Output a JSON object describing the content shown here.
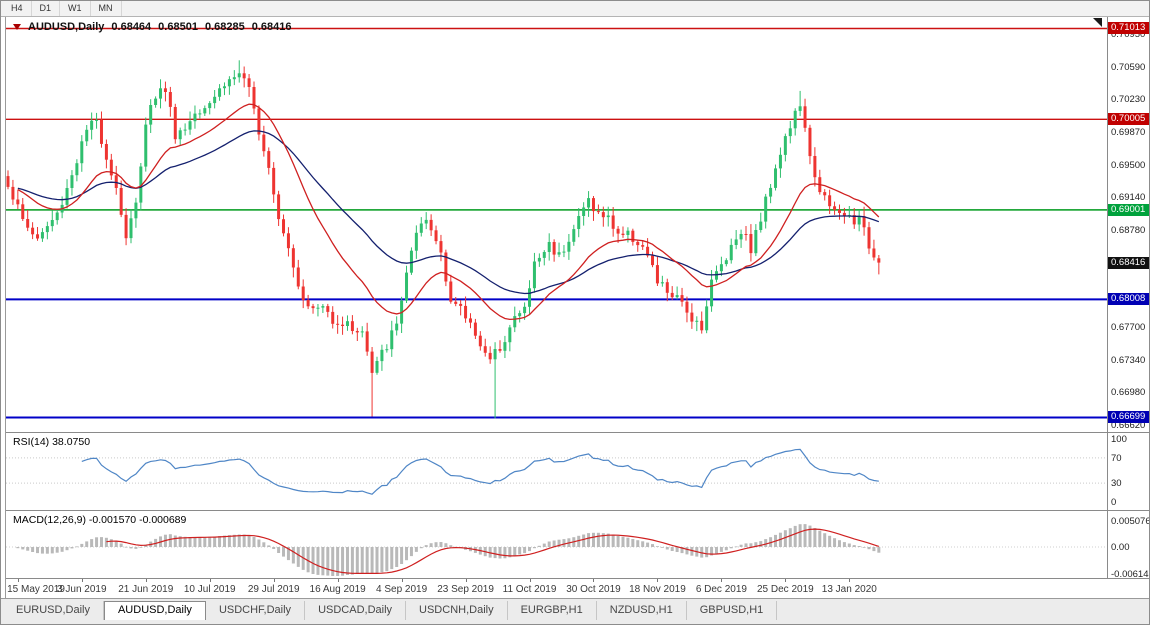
{
  "colors": {
    "up": "#2fbf6e",
    "down": "#ee3431",
    "ma_fast": "#cf2020",
    "ma_slow": "#14206e",
    "line_red": "#cc1111",
    "line_green": "#23a83c",
    "line_blue": "#0000c8",
    "rsi_line": "#4f86c6",
    "macd_hist": "#b9b9b9",
    "macd_signal": "#cf2020",
    "badge_red": "#c00000",
    "badge_green": "#00a23c",
    "badge_blue": "#0000b4",
    "badge_black": "#111111"
  },
  "icons": {
    "symbol_marker": "triangle-down-red",
    "chart_shift": "black-corner-triangle"
  },
  "toolbar": {
    "timeframes": [
      "H4",
      "D1",
      "W1",
      "MN"
    ]
  },
  "chart_header": {
    "symbol": "AUDUSD,Daily",
    "open": "0.68464",
    "high": "0.68501",
    "low": "0.68285",
    "close": "0.68416"
  },
  "price_axis": {
    "labels": [
      {
        "text": "0.70950",
        "price": 0.7095
      },
      {
        "text": "0.70590",
        "price": 0.7059
      },
      {
        "text": "0.70230",
        "price": 0.7023
      },
      {
        "text": "0.69870",
        "price": 0.6987
      },
      {
        "text": "0.69500",
        "price": 0.695
      },
      {
        "text": "0.69140",
        "price": 0.6914
      },
      {
        "text": "0.68780",
        "price": 0.6878
      },
      {
        "text": "0.67700",
        "price": 0.677
      },
      {
        "text": "0.67340",
        "price": 0.6734
      },
      {
        "text": "0.66980",
        "price": 0.6698
      },
      {
        "text": "0.66620",
        "price": 0.6662
      }
    ],
    "badges": [
      {
        "text": "0.71013",
        "price": 0.71013,
        "color_key": "badge_red"
      },
      {
        "text": "0.70005",
        "price": 0.70005,
        "color_key": "badge_red"
      },
      {
        "text": "0.69001",
        "price": 0.69001,
        "color_key": "badge_green"
      },
      {
        "text": "0.68416",
        "price": 0.68416,
        "color_key": "badge_black"
      },
      {
        "text": "0.68008",
        "price": 0.68008,
        "color_key": "badge_blue"
      },
      {
        "text": "0.66699",
        "price": 0.66699,
        "color_key": "badge_blue"
      }
    ]
  },
  "hlines": [
    {
      "price": 0.71013,
      "color_key": "line_red",
      "width": 1.4
    },
    {
      "price": 0.70005,
      "color_key": "line_red",
      "width": 1.4
    },
    {
      "price": 0.69001,
      "color_key": "line_green",
      "width": 1.8
    },
    {
      "price": 0.68008,
      "color_key": "line_blue",
      "width": 2
    },
    {
      "price": 0.66699,
      "color_key": "line_blue",
      "width": 2
    }
  ],
  "chart_data": {
    "type": "candlestick",
    "symbol": "AUDUSD",
    "timeframe": "Daily",
    "price_range": {
      "min": 0.6656,
      "max": 0.7114
    },
    "num_candles": 178,
    "spacing": 4.92,
    "noise": 0.0014,
    "waypoints": [
      [
        0,
        0.693
      ],
      [
        3,
        0.6888
      ],
      [
        6,
        0.6868
      ],
      [
        10,
        0.6895
      ],
      [
        13,
        0.694
      ],
      [
        16,
        0.6988
      ],
      [
        18,
        0.6998
      ],
      [
        20,
        0.696
      ],
      [
        22,
        0.6925
      ],
      [
        24,
        0.687
      ],
      [
        26,
        0.6905
      ],
      [
        28,
        0.7
      ],
      [
        30,
        0.7028
      ],
      [
        32,
        0.7035
      ],
      [
        34,
        0.6985
      ],
      [
        36,
        0.699
      ],
      [
        38,
        0.701
      ],
      [
        41,
        0.7022
      ],
      [
        44,
        0.704
      ],
      [
        47,
        0.7052
      ],
      [
        49,
        0.703
      ],
      [
        51,
        0.699
      ],
      [
        53,
        0.695
      ],
      [
        55,
        0.6895
      ],
      [
        57,
        0.686
      ],
      [
        59,
        0.682
      ],
      [
        61,
        0.679
      ],
      [
        64,
        0.6792
      ],
      [
        66,
        0.678
      ],
      [
        69,
        0.6772
      ],
      [
        72,
        0.6765
      ],
      [
        74,
        0.6718
      ],
      [
        76,
        0.674
      ],
      [
        79,
        0.6772
      ],
      [
        81,
        0.6832
      ],
      [
        83,
        0.687
      ],
      [
        85,
        0.6887
      ],
      [
        88,
        0.6855
      ],
      [
        90,
        0.68
      ],
      [
        93,
        0.6782
      ],
      [
        95,
        0.6765
      ],
      [
        98,
        0.673
      ],
      [
        100,
        0.675
      ],
      [
        103,
        0.678
      ],
      [
        105,
        0.679
      ],
      [
        107,
        0.684
      ],
      [
        110,
        0.6862
      ],
      [
        112,
        0.685
      ],
      [
        115,
        0.688
      ],
      [
        118,
        0.6912
      ],
      [
        120,
        0.6895
      ],
      [
        122,
        0.689
      ],
      [
        124,
        0.6875
      ],
      [
        127,
        0.687
      ],
      [
        129,
        0.686
      ],
      [
        132,
        0.682
      ],
      [
        134,
        0.681
      ],
      [
        136,
        0.68
      ],
      [
        139,
        0.6782
      ],
      [
        141,
        0.6772
      ],
      [
        143,
        0.682
      ],
      [
        145,
        0.684
      ],
      [
        147,
        0.686
      ],
      [
        149,
        0.688
      ],
      [
        151,
        0.6858
      ],
      [
        153,
        0.689
      ],
      [
        156,
        0.695
      ],
      [
        158,
        0.698
      ],
      [
        161,
        0.7018
      ],
      [
        163,
        0.6955
      ],
      [
        165,
        0.6925
      ],
      [
        167,
        0.69
      ],
      [
        169,
        0.6895
      ],
      [
        171,
        0.6892
      ],
      [
        173,
        0.6888
      ],
      [
        175,
        0.6862
      ],
      [
        176,
        0.685
      ],
      [
        177,
        0.68416
      ]
    ],
    "forced_extremes": [
      {
        "i": 47,
        "high": 0.7066
      },
      {
        "i": 74,
        "low": 0.6671
      },
      {
        "i": 99,
        "low": 0.6669
      },
      {
        "i": 161,
        "high": 0.7032
      }
    ],
    "last_candle": {
      "open": 0.68464,
      "high": 0.68501,
      "low": 0.68285,
      "close": 0.68416
    },
    "ma_fast_period": 20,
    "ma_slow_period": 45,
    "rsi_period": 14,
    "macd": {
      "fast": 12,
      "slow": 26,
      "signal": 9
    },
    "dates": [
      {
        "label": "15 May 2019",
        "i": 2
      },
      {
        "label": "3 Jun 2019",
        "i": 15
      },
      {
        "label": "21 Jun 2019",
        "i": 28
      },
      {
        "label": "10 Jul 2019",
        "i": 41
      },
      {
        "label": "29 Jul 2019",
        "i": 54
      },
      {
        "label": "16 Aug 2019",
        "i": 67
      },
      {
        "label": "4 Sep 2019",
        "i": 80
      },
      {
        "label": "23 Sep 2019",
        "i": 93
      },
      {
        "label": "11 Oct 2019",
        "i": 106
      },
      {
        "label": "30 Oct 2019",
        "i": 119
      },
      {
        "label": "18 Nov 2019",
        "i": 132
      },
      {
        "label": "6 Dec 2019",
        "i": 145
      },
      {
        "label": "25 Dec 2019",
        "i": 158
      },
      {
        "label": "13 Jan 2020",
        "i": 171
      }
    ]
  },
  "rsi_panel": {
    "label": "RSI(14) 38.0750",
    "value": 38.075,
    "levels": [
      70,
      30
    ],
    "axis": [
      {
        "text": "100",
        "v": 100
      },
      {
        "text": "70",
        "v": 70
      },
      {
        "text": "30",
        "v": 30
      },
      {
        "text": "0",
        "v": 0
      }
    ]
  },
  "macd_panel": {
    "label": "MACD(12,26,9) -0.001570 -0.000689",
    "main_value": -0.00157,
    "signal_value": -0.000689,
    "axis": [
      {
        "text": "0.005076",
        "v": 0.005076
      },
      {
        "text": "0.00",
        "v": 0
      },
      {
        "text": "-0.006148",
        "v": -0.006148
      }
    ]
  },
  "tabs": [
    {
      "label": "EURUSD,Daily",
      "active": false
    },
    {
      "label": "AUDUSD,Daily",
      "active": true
    },
    {
      "label": "USDCHF,Daily",
      "active": false
    },
    {
      "label": "USDCAD,Daily",
      "active": false
    },
    {
      "label": "USDCNH,Daily",
      "active": false
    },
    {
      "label": "EURGBP,H1",
      "active": false
    },
    {
      "label": "NZDUSD,H1",
      "active": false
    },
    {
      "label": "GBPUSD,H1",
      "active": false
    }
  ]
}
